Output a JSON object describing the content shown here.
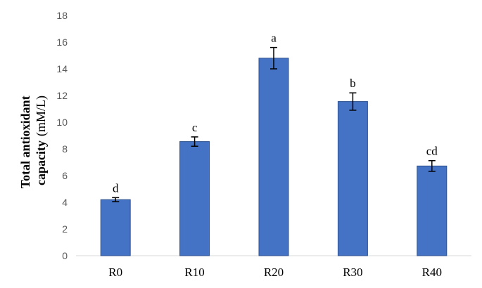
{
  "chart_data": {
    "type": "bar",
    "categories": [
      "R0",
      "R10",
      "R20",
      "R30",
      "R40"
    ],
    "values": [
      4.2,
      8.55,
      14.8,
      11.55,
      6.72
    ],
    "errors": [
      0.15,
      0.35,
      0.8,
      0.65,
      0.4
    ],
    "data_labels": [
      "d",
      "c",
      "a",
      "b",
      "cd"
    ],
    "ylabel_line1": "Total antioxidant",
    "ylabel_line2_bold": "capacity",
    "ylabel_line2_unit": "(mM/L)",
    "ylim": [
      0,
      18
    ],
    "yticks": [
      "0",
      "2",
      "4",
      "6",
      "8",
      "10",
      "12",
      "14",
      "16",
      "18"
    ],
    "grid": false,
    "legend": "none",
    "colors": {
      "bar": "#4472C4",
      "bar_edge": "#2F528F",
      "axis": "#D9D9D9",
      "error_bar": "#000000"
    }
  }
}
